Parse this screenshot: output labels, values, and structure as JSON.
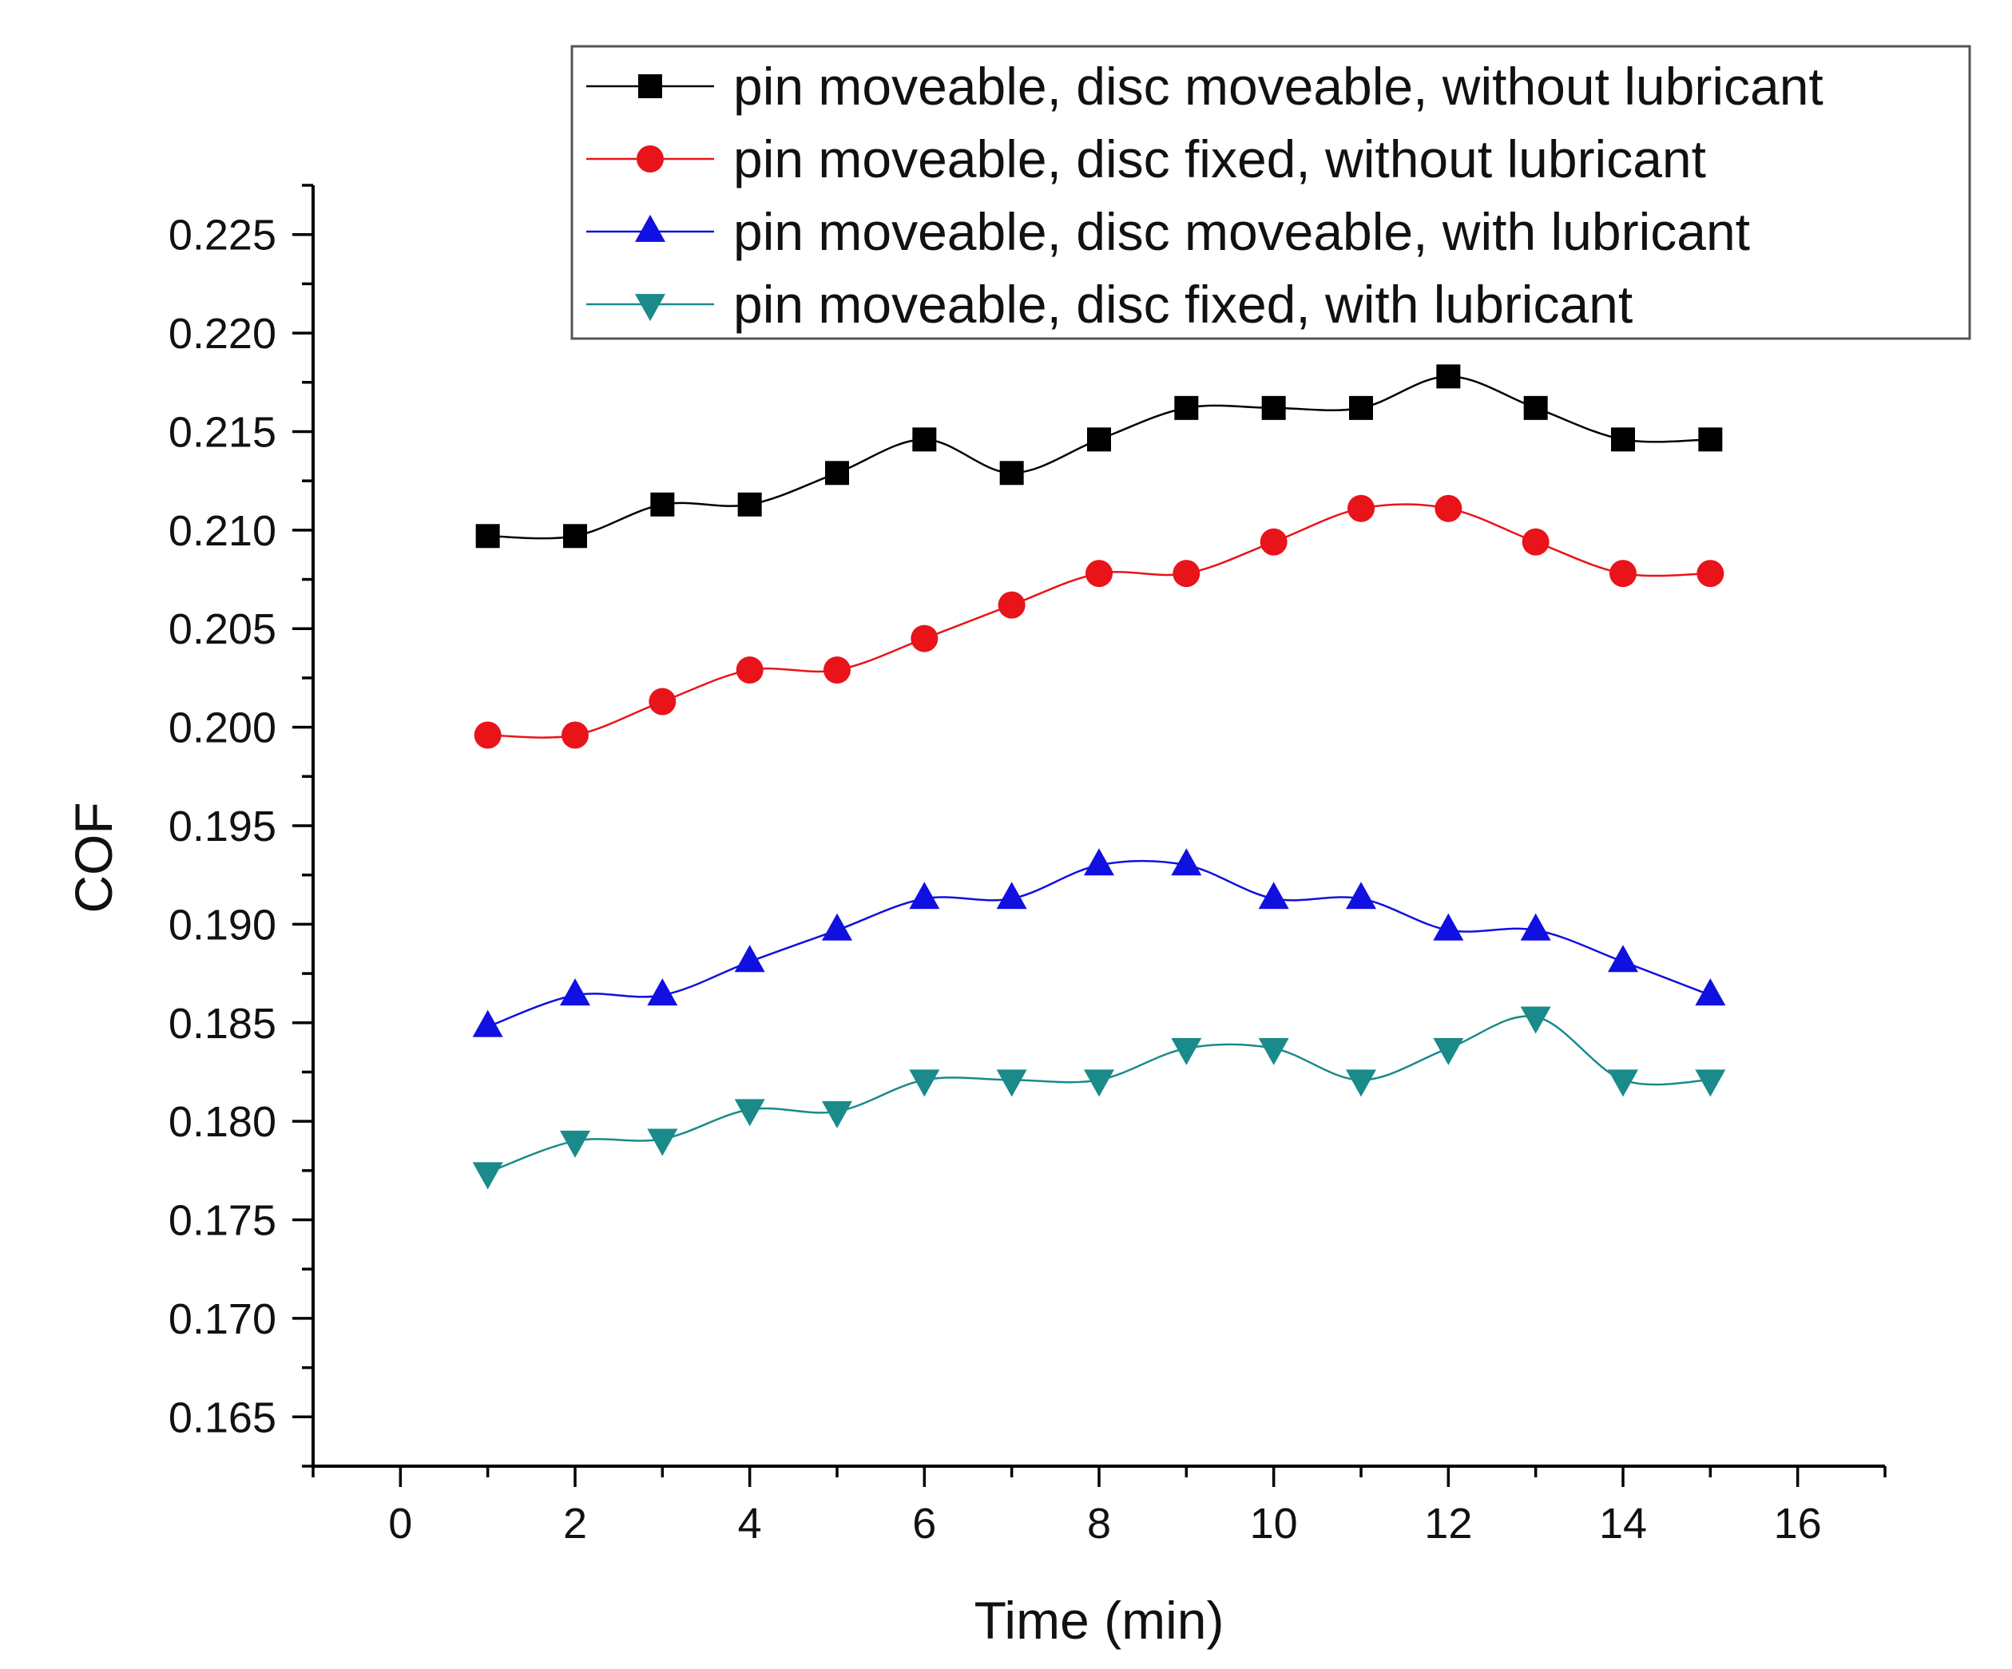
{
  "chart_data": {
    "type": "line",
    "title": "",
    "xlabel": "Time (min)",
    "ylabel": "COF",
    "xlim": [
      -1,
      17
    ],
    "ylim": [
      0.1625,
      0.2275
    ],
    "xticks": [
      0,
      2,
      4,
      6,
      8,
      10,
      12,
      14,
      16
    ],
    "xtick_labels": [
      "0",
      "2",
      "4",
      "6",
      "8",
      "10",
      "12",
      "14",
      "16"
    ],
    "yticks": [
      0.165,
      0.17,
      0.175,
      0.18,
      0.185,
      0.19,
      0.195,
      0.2,
      0.205,
      0.21,
      0.215,
      0.22,
      0.225
    ],
    "ytick_labels": [
      "0.165",
      "0.170",
      "0.175",
      "0.180",
      "0.185",
      "0.190",
      "0.195",
      "0.200",
      "0.205",
      "0.210",
      "0.215",
      "0.220",
      "0.225"
    ],
    "grid": false,
    "legend_position": "top-right",
    "x": [
      1,
      2,
      3,
      4,
      5,
      6,
      7,
      8,
      9,
      10,
      11,
      12,
      13,
      14,
      15
    ],
    "series": [
      {
        "name": "pin moveable, disc moveable, without lubricant",
        "color": "#000000",
        "marker": "square",
        "values": [
          0.2097,
          0.2097,
          0.2113,
          0.2113,
          0.2129,
          0.2146,
          0.2129,
          0.2146,
          0.2162,
          0.2162,
          0.2162,
          0.2178,
          0.2162,
          0.2146,
          0.2146
        ]
      },
      {
        "name": "pin moveable, disc fixed, without lubricant",
        "color": "#e8141a",
        "marker": "circle",
        "values": [
          0.1996,
          0.1996,
          0.2013,
          0.2029,
          0.2029,
          0.2045,
          0.2062,
          0.2078,
          0.2078,
          0.2094,
          0.2111,
          0.2111,
          0.2094,
          0.2078,
          0.2078
        ]
      },
      {
        "name": "pin moveable, disc moveable, with lubricant",
        "color": "#1010e0",
        "marker": "triangle-up",
        "values": [
          0.1848,
          0.1864,
          0.1864,
          0.1881,
          0.1897,
          0.1913,
          0.1913,
          0.193,
          0.193,
          0.1913,
          0.1913,
          0.1897,
          0.1897,
          0.1881,
          0.1864
        ]
      },
      {
        "name": "pin moveable, disc fixed, with lubricant",
        "color": "#1a8a8a",
        "marker": "triangle-down",
        "values": [
          0.1774,
          0.179,
          0.1791,
          0.1806,
          0.1805,
          0.1821,
          0.1821,
          0.1821,
          0.1837,
          0.1837,
          0.1821,
          0.1837,
          0.1853,
          0.1821,
          0.1821
        ]
      }
    ]
  }
}
